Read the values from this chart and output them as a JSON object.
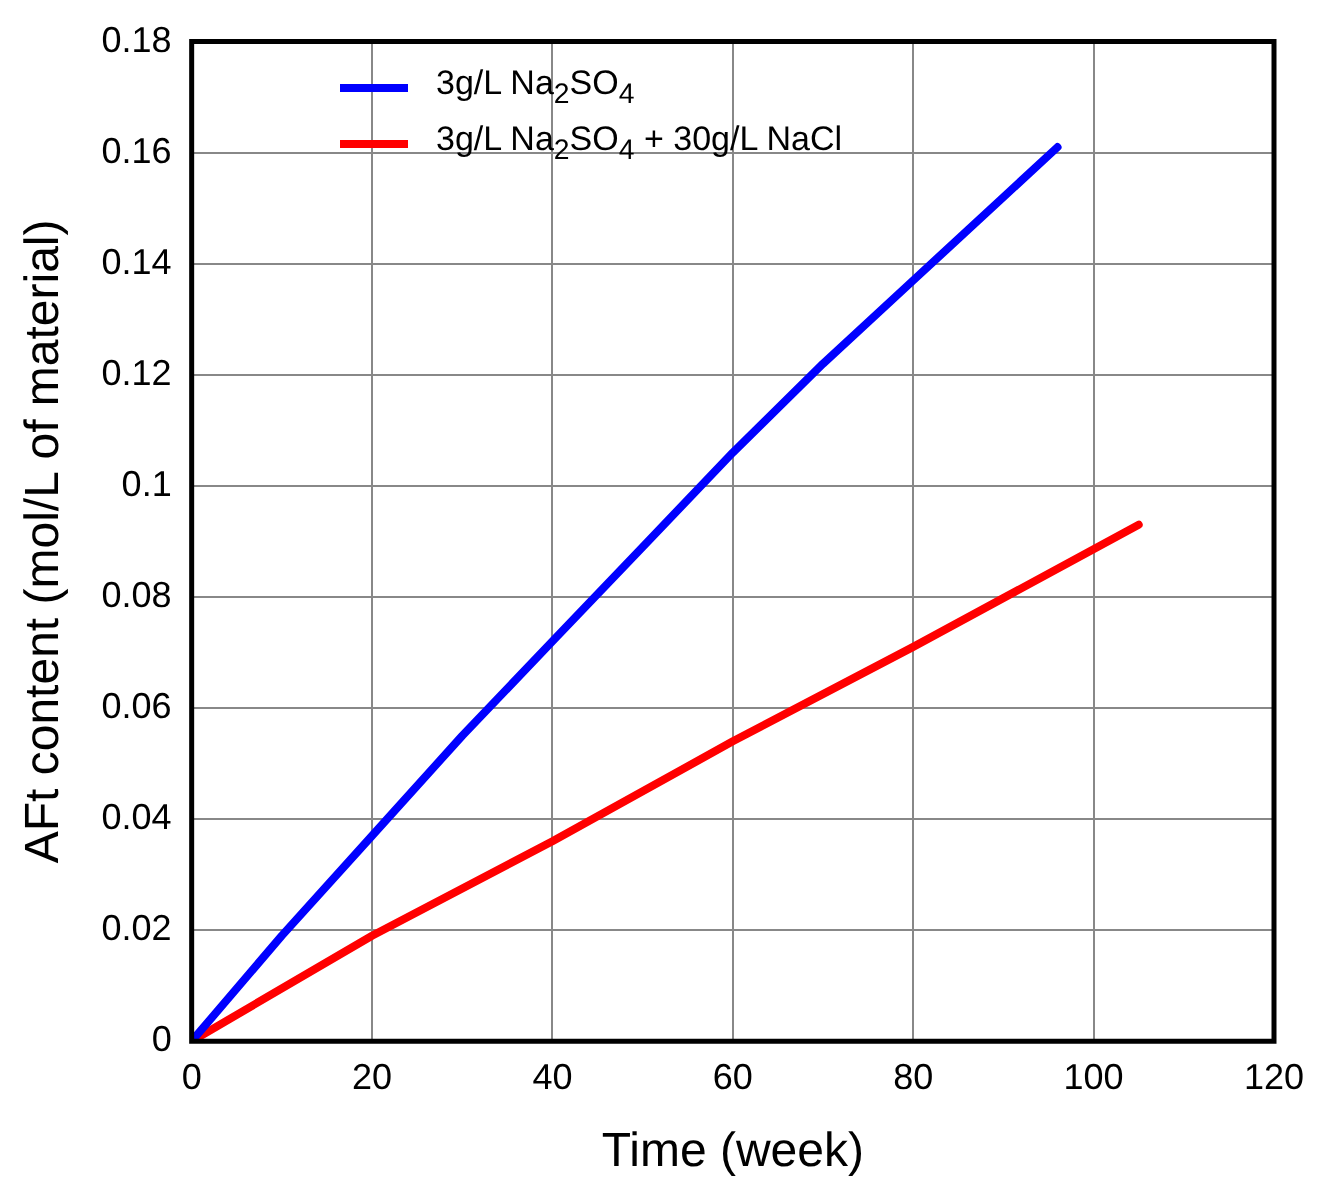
{
  "chart_data": {
    "type": "line",
    "xlabel": "Time (week)",
    "ylabel": "AFt content (mol/L of material)",
    "xlim": [
      0,
      120
    ],
    "xticks": [
      0,
      20,
      40,
      60,
      80,
      100,
      120
    ],
    "ylim": [
      0,
      0.18
    ],
    "yticks": [
      0,
      0.02,
      0.04,
      0.06,
      0.08,
      0.1,
      0.12,
      0.14,
      0.16,
      0.18
    ],
    "grid": true,
    "legend": "top left",
    "line_style": "solid",
    "marker": "none",
    "series": [
      {
        "name": "3g/L Na$_{2}$SO$_{4}$",
        "color": "#0000ff",
        "x": [
          0,
          10,
          20,
          30,
          40,
          50,
          60,
          70,
          80,
          90,
          96
        ],
        "values": [
          0,
          0.019,
          0.037,
          0.055,
          0.072,
          0.089,
          0.106,
          0.122,
          0.137,
          0.152,
          0.161
        ]
      },
      {
        "name": "3g/L Na$_{2}$SO$_{4}$ + 30g/L NaCl",
        "color": "#ff0000",
        "x": [
          0,
          20,
          40,
          60,
          80,
          105
        ],
        "values": [
          0,
          0.019,
          0.036,
          0.054,
          0.071,
          0.093
        ]
      }
    ]
  }
}
